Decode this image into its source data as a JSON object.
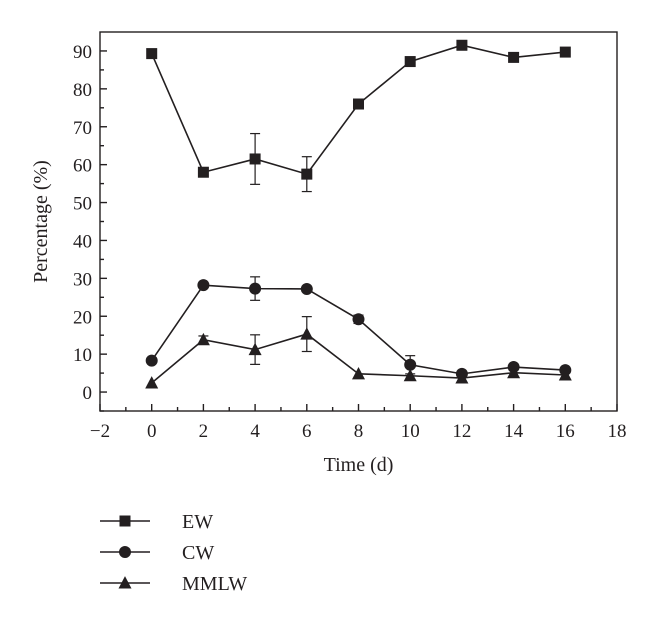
{
  "chart_data": {
    "type": "line",
    "xlabel": "Time (d)",
    "ylabel": "Percentage (%)",
    "xlim": [
      -2,
      18
    ],
    "ylim": [
      -5,
      95
    ],
    "xticks": [
      -2,
      0,
      2,
      4,
      6,
      8,
      10,
      12,
      14,
      16,
      18
    ],
    "yticks": [
      0,
      10,
      20,
      30,
      40,
      50,
      60,
      70,
      80,
      90
    ],
    "x": [
      0,
      2,
      4,
      6,
      8,
      10,
      12,
      14,
      16
    ],
    "legend_position": "bottom-left, below plot",
    "series": [
      {
        "name": "EW",
        "marker": "square",
        "values": [
          89.3,
          58.0,
          61.5,
          57.5,
          76.0,
          87.2,
          91.5,
          88.3,
          89.7
        ],
        "errors": [
          0.5,
          0.5,
          6.7,
          4.6,
          1.1,
          0.5,
          0.5,
          0.5,
          0.5
        ]
      },
      {
        "name": "CW",
        "marker": "circle",
        "values": [
          8.3,
          28.2,
          27.3,
          27.2,
          19.2,
          7.2,
          4.8,
          6.6,
          5.8
        ],
        "errors": [
          0.3,
          0.5,
          3.1,
          0.3,
          1.1,
          2.4,
          0.3,
          0.3,
          0.4
        ]
      },
      {
        "name": "MMLW",
        "marker": "triangle",
        "values": [
          2.4,
          13.8,
          11.2,
          15.3,
          4.8,
          4.3,
          3.7,
          5.1,
          4.5
        ],
        "errors": [
          0.3,
          1.0,
          3.9,
          4.6,
          0.3,
          0.6,
          0.3,
          0.5,
          0.5
        ]
      }
    ],
    "color": "#231f20"
  }
}
